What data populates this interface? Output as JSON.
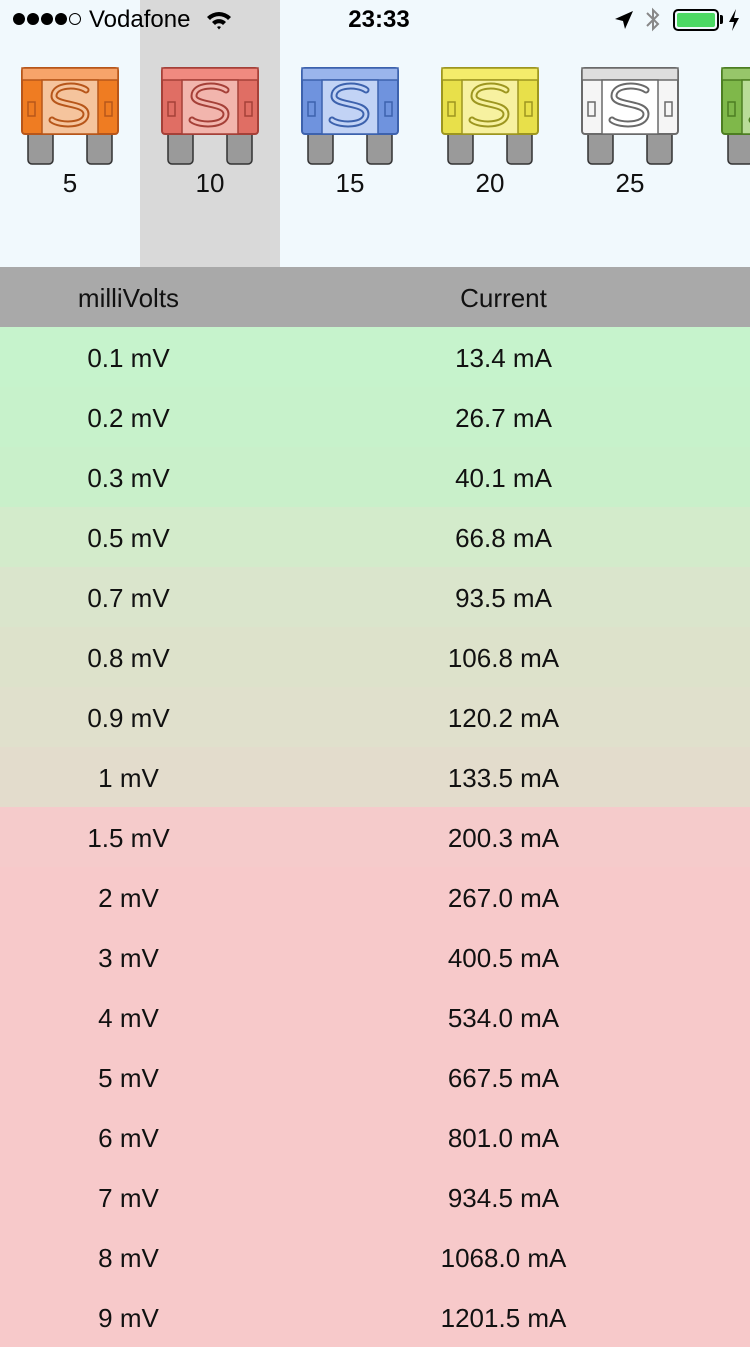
{
  "status_bar": {
    "carrier": "Vodafone",
    "time": "23:33"
  },
  "fuses": [
    {
      "label": "5",
      "body": "#ef7c22",
      "light": "#f5c49d",
      "dark": "#b7561a",
      "tab": "#f7a46a"
    },
    {
      "label": "10",
      "body": "#e06e64",
      "light": "#f2b5ad",
      "dark": "#a54038",
      "tab": "#f08a80"
    },
    {
      "label": "15",
      "body": "#6f93de",
      "light": "#c2d3f5",
      "dark": "#3d62ad",
      "tab": "#9ab5ec"
    },
    {
      "label": "20",
      "body": "#e8e04a",
      "light": "#f7f1a0",
      "dark": "#9d9620",
      "tab": "#f4ec6b"
    },
    {
      "label": "25",
      "body": "#f5f5f5",
      "light": "#ffffff",
      "dark": "#6a6a6a",
      "tab": "#dedede"
    },
    {
      "label": "",
      "body": "#7fb84a",
      "light": "#b9dc98",
      "dark": "#4d7e22",
      "tab": "#97c66a"
    }
  ],
  "selected_fuse": "10",
  "table": {
    "headers": {
      "voltage": "milliVolts",
      "current": "Current"
    },
    "rows": [
      {
        "voltage": "0.1 mV",
        "current": "13.4 mA",
        "color": "#c6f3cc"
      },
      {
        "voltage": "0.2 mV",
        "current": "26.7 mA",
        "color": "#c7f2cb"
      },
      {
        "voltage": "0.3 mV",
        "current": "40.1 mA",
        "color": "#c9f0ca"
      },
      {
        "voltage": "0.5 mV",
        "current": "66.8 mA",
        "color": "#d3ebcb"
      },
      {
        "voltage": "0.7 mV",
        "current": "93.5 mA",
        "color": "#dae5cc"
      },
      {
        "voltage": "0.8 mV",
        "current": "106.8 mA",
        "color": "#dde2cb"
      },
      {
        "voltage": "0.9 mV",
        "current": "120.2 mA",
        "color": "#e0e0cc"
      },
      {
        "voltage": "1 mV",
        "current": "133.5 mA",
        "color": "#e3dccc"
      },
      {
        "voltage": "1.5 mV",
        "current": "200.3 mA",
        "color": "#f5cbcb"
      },
      {
        "voltage": "2 mV",
        "current": "267.0 mA",
        "color": "#f7c9ca"
      },
      {
        "voltage": "3 mV",
        "current": "400.5 mA",
        "color": "#f7c9ca"
      },
      {
        "voltage": "4 mV",
        "current": "534.0 mA",
        "color": "#f7c9ca"
      },
      {
        "voltage": "5 mV",
        "current": "667.5 mA",
        "color": "#f7c9ca"
      },
      {
        "voltage": "6 mV",
        "current": "801.0 mA",
        "color": "#f7c9ca"
      },
      {
        "voltage": "7 mV",
        "current": "934.5 mA",
        "color": "#f7c9ca"
      },
      {
        "voltage": "8 mV",
        "current": "1068.0 mA",
        "color": "#f7c9ca"
      },
      {
        "voltage": "9 mV",
        "current": "1201.5 mA",
        "color": "#f7c9ca"
      }
    ]
  }
}
